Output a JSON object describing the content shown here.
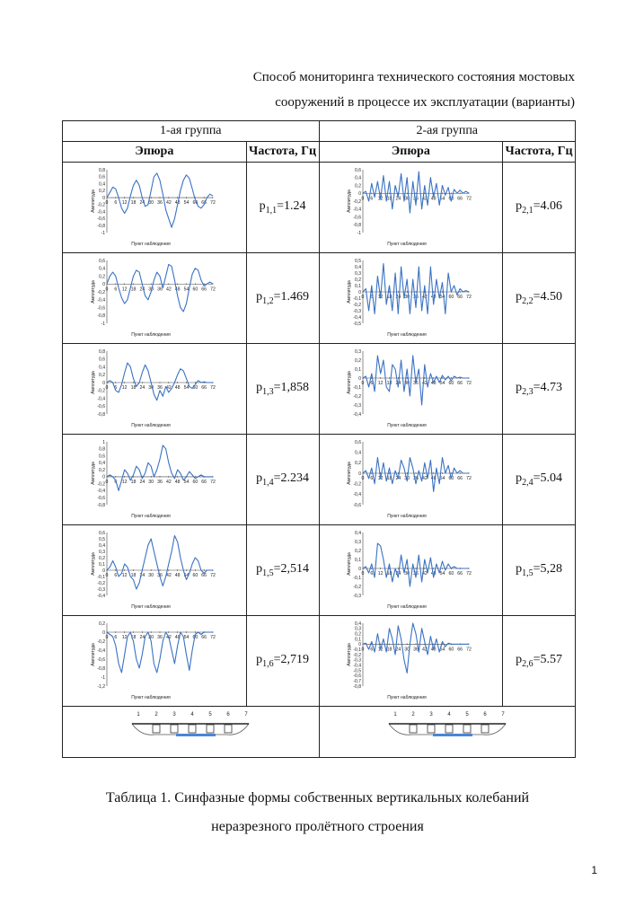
{
  "title": {
    "line1": "Способ мониторинга технического состояния мостовых",
    "line2": "сооружений в процессе их эксплуатации (варианты)"
  },
  "table": {
    "group1": "1-ая группа",
    "group2": "2-ая группа",
    "col_diagram": "Эпюра",
    "col_freq": "Частота, Гц",
    "chart_ylabel": "Амплитуда",
    "chart_xlabel": "Пункт наблюдения",
    "x_ticks": [
      "0",
      "6",
      "12",
      "18",
      "24",
      "30",
      "36",
      "42",
      "48",
      "54",
      "60",
      "66",
      "72"
    ],
    "rows": [
      {
        "left": {
          "sym": "p",
          "sub": "1,1",
          "val": "=1.24",
          "yticks": [
            "0,8",
            "0,6",
            "0,4",
            "0,2",
            "0",
            "-0,2",
            "-0,4",
            "-0,6",
            "-0,8",
            "-1"
          ],
          "ymax": 0.8,
          "ymin": -1.0,
          "curve": [
            0,
            0.15,
            0.3,
            0.25,
            0.0,
            -0.3,
            -0.45,
            -0.3,
            0.05,
            0.35,
            0.5,
            0.35,
            0.0,
            -0.25,
            -0.2,
            0.2,
            0.6,
            0.7,
            0.5,
            0.1,
            -0.35,
            -0.6,
            -0.85,
            -0.6,
            -0.2,
            0.2,
            0.5,
            0.65,
            0.55,
            0.25,
            -0.05,
            -0.25,
            -0.3,
            -0.2,
            0.0,
            0.1,
            0.05
          ]
        },
        "right": {
          "sym": "p",
          "sub": "2,1",
          "val": "=4.06",
          "yticks": [
            "0,6",
            "0,4",
            "0,2",
            "0",
            "-0,2",
            "-0,4",
            "-0,6",
            "-0,8",
            "-1"
          ],
          "ymax": 0.6,
          "ymin": -1.0,
          "curve": [
            0,
            0.05,
            -0.2,
            0.25,
            -0.1,
            0.3,
            -0.15,
            0.45,
            -0.2,
            0.3,
            -0.4,
            0.2,
            -0.1,
            0.5,
            -0.2,
            0.4,
            -0.5,
            0.3,
            -0.3,
            0.55,
            -0.4,
            0.2,
            -0.3,
            0.4,
            -0.1,
            0.25,
            -0.3,
            0.2,
            -0.05,
            0.15,
            -0.2,
            0.1,
            0.0,
            0.08,
            0.0,
            0.05,
            0.0
          ]
        }
      },
      {
        "left": {
          "sym": "p",
          "sub": "1,2",
          "val": "=1.469",
          "yticks": [
            "0,6",
            "0,4",
            "0,2",
            "0",
            "-0,2",
            "-0,4",
            "-0,6",
            "-0,8",
            "-1"
          ],
          "ymax": 0.6,
          "ymin": -1.0,
          "curve": [
            0,
            0.2,
            0.3,
            0.2,
            -0.1,
            -0.35,
            -0.5,
            -0.4,
            -0.1,
            0.2,
            0.35,
            0.3,
            0.0,
            -0.3,
            -0.4,
            -0.2,
            0.1,
            0.3,
            0.2,
            -0.1,
            0.2,
            0.5,
            0.45,
            0.1,
            -0.3,
            -0.6,
            -0.7,
            -0.5,
            -0.1,
            0.25,
            0.4,
            0.35,
            0.1,
            -0.05,
            0.0,
            0.05,
            0.0
          ]
        },
        "right": {
          "sym": "p",
          "sub": "2,2",
          "val": "=4.50",
          "yticks": [
            "0,5",
            "0,4",
            "0,3",
            "0,2",
            "0,1",
            "0",
            "-0,1",
            "-0,2",
            "-0,3",
            "-0,4",
            "-0,5"
          ],
          "ymax": 0.5,
          "ymin": -0.5,
          "curve": [
            0,
            0.05,
            -0.3,
            0.1,
            -0.35,
            0.25,
            -0.1,
            0.45,
            -0.2,
            0.1,
            -0.3,
            0.3,
            -0.35,
            0.4,
            -0.1,
            0.2,
            -0.35,
            0.2,
            -0.25,
            0.4,
            -0.3,
            0.1,
            -0.35,
            0.4,
            -0.2,
            0.2,
            -0.1,
            0.15,
            -0.35,
            0.3,
            0.0,
            0.1,
            -0.05,
            0.05,
            0.0,
            0.02,
            0.0
          ]
        }
      },
      {
        "left": {
          "sym": "p",
          "sub": "1,3",
          "val": "=1,858",
          "yticks": [
            "0,8",
            "0,6",
            "0,4",
            "0,2",
            "0",
            "-0,2",
            "-0,4",
            "-0,6",
            "-0,8"
          ],
          "ymax": 0.8,
          "ymin": -0.8,
          "curve": [
            0,
            0.05,
            0.0,
            -0.2,
            -0.25,
            -0.05,
            0.25,
            0.5,
            0.4,
            0.1,
            -0.1,
            0.0,
            0.25,
            0.45,
            0.3,
            0.0,
            -0.3,
            -0.45,
            -0.2,
            -0.35,
            -0.1,
            -0.25,
            -0.15,
            0.0,
            0.2,
            0.35,
            0.3,
            0.1,
            -0.1,
            -0.15,
            -0.05,
            0.05,
            0.0,
            0.02,
            0.0,
            0.0,
            0.0
          ]
        },
        "right": {
          "sym": "p",
          "sub": "2,3",
          "val": "=4.73",
          "yticks": [
            "0,3",
            "0,2",
            "0,1",
            "0",
            "-0,1",
            "-0,2",
            "-0,3",
            "-0,4"
          ],
          "ymax": 0.3,
          "ymin": -0.4,
          "curve": [
            0,
            0.02,
            -0.1,
            0.05,
            -0.15,
            0.25,
            0.05,
            0.2,
            -0.1,
            -0.15,
            0.15,
            0.1,
            -0.1,
            0.2,
            -0.15,
            0.1,
            -0.2,
            0.25,
            -0.05,
            0.1,
            -0.3,
            0.15,
            -0.1,
            0.05,
            -0.05,
            0.02,
            -0.05,
            0.03,
            -0.02,
            0.02,
            -0.03,
            0.02,
            0.0,
            0.01,
            0.0,
            0.0,
            0.0
          ]
        }
      },
      {
        "left": {
          "sym": "p",
          "sub": "1,4",
          "val": "=2.234",
          "yticks": [
            "1",
            "0,8",
            "0,6",
            "0,4",
            "0,2",
            "0",
            "-0,2",
            "-0,4",
            "-0,6",
            "-0,8"
          ],
          "ymax": 1.0,
          "ymin": -0.8,
          "curve": [
            0,
            0.05,
            0.0,
            -0.1,
            -0.4,
            -0.1,
            0.2,
            0.1,
            -0.1,
            0.05,
            0.3,
            0.2,
            -0.05,
            0.1,
            0.4,
            0.3,
            0.0,
            0.2,
            0.5,
            0.9,
            0.8,
            0.4,
            0.1,
            -0.05,
            0.2,
            0.1,
            -0.1,
            0.0,
            0.15,
            0.05,
            -0.05,
            0.0,
            0.05,
            0.0,
            0.0,
            0.0,
            0.0
          ]
        },
        "right": {
          "sym": "p",
          "sub": "2,4",
          "val": "=5.04",
          "yticks": [
            "0,6",
            "0,4",
            "0,2",
            "0",
            "-0,2",
            "-0,4",
            "-0,6"
          ],
          "ymax": 0.6,
          "ymin": -0.6,
          "curve": [
            0,
            0.05,
            -0.1,
            0.1,
            -0.2,
            0.3,
            -0.1,
            0.2,
            -0.15,
            0.1,
            -0.2,
            0.05,
            -0.1,
            0.25,
            0.1,
            -0.15,
            0.3,
            0.1,
            -0.2,
            0.05,
            -0.15,
            0.2,
            -0.1,
            0.25,
            -0.35,
            0.1,
            -0.2,
            0.3,
            0.0,
            0.15,
            -0.1,
            0.1,
            0.0,
            0.05,
            0.0,
            0.0,
            0.0
          ]
        }
      },
      {
        "left": {
          "sym": "p",
          "sub": "1,5",
          "val": "=2,514",
          "yticks": [
            "0,6",
            "0,5",
            "0,4",
            "0,3",
            "0,2",
            "0,1",
            "0",
            "-0,1",
            "-0,2",
            "-0,3",
            "-0,4"
          ],
          "ymax": 0.6,
          "ymin": -0.4,
          "curve": [
            0,
            0.05,
            0.15,
            0.05,
            -0.1,
            -0.05,
            0.1,
            0.05,
            -0.1,
            -0.15,
            -0.3,
            -0.2,
            0.0,
            0.2,
            0.4,
            0.5,
            0.3,
            0.1,
            -0.1,
            -0.25,
            -0.1,
            0.1,
            0.3,
            0.55,
            0.45,
            0.2,
            0.0,
            -0.15,
            -0.05,
            0.1,
            0.2,
            0.15,
            0.0,
            -0.05,
            0.0,
            0.0,
            0.0
          ]
        },
        "right": {
          "sym": "p",
          "sub": "1,5",
          "val": "=5,28",
          "yticks": [
            "0,4",
            "0,3",
            "0,2",
            "0,1",
            "0",
            "-0,1",
            "-0,2",
            "-0,3"
          ],
          "ymax": 0.4,
          "ymin": -0.3,
          "curve": [
            0,
            0.02,
            -0.05,
            0.05,
            -0.1,
            0.28,
            0.25,
            0.1,
            -0.1,
            0.05,
            -0.15,
            0.0,
            -0.1,
            0.15,
            -0.05,
            0.1,
            -0.2,
            0.05,
            -0.1,
            0.15,
            -0.15,
            0.1,
            -0.05,
            0.12,
            -0.1,
            0.05,
            -0.05,
            0.08,
            -0.02,
            0.05,
            0.0,
            0.02,
            0.0,
            0.0,
            0.0,
            0.0,
            0.0
          ]
        }
      },
      {
        "left": {
          "sym": "p",
          "sub": "1,6",
          "val": "=2,719",
          "yticks": [
            "0,2",
            "0",
            "-0,2",
            "-0,4",
            "-0,6",
            "-0,8",
            "-1",
            "-1,2"
          ],
          "ymax": 0.2,
          "ymin": -1.2,
          "curve": [
            0,
            -0.05,
            -0.1,
            -0.3,
            -0.7,
            -0.9,
            -0.5,
            -0.1,
            0.0,
            -0.2,
            -0.6,
            -0.8,
            -0.5,
            -0.1,
            0.0,
            -0.2,
            -0.7,
            -0.9,
            -0.6,
            -0.2,
            0.0,
            -0.1,
            -0.4,
            -0.7,
            -0.3,
            0.0,
            -0.1,
            -0.5,
            -0.85,
            -0.4,
            -0.05,
            0.0,
            -0.05,
            0.0,
            0.0,
            0.0,
            0.0
          ]
        },
        "right": {
          "sym": "p",
          "sub": "2,6",
          "val": "=5.57",
          "yticks": [
            "0,4",
            "0,3",
            "0,2",
            "0,1",
            "0",
            "-0,1",
            "-0,2",
            "-0,3",
            "-0,4",
            "-0,5",
            "-0,6",
            "-0,7",
            "-0,8"
          ],
          "ymax": 0.4,
          "ymin": -0.8,
          "curve": [
            0,
            0.02,
            -0.1,
            0.05,
            -0.15,
            0.2,
            -0.1,
            0.1,
            -0.15,
            0.3,
            0.1,
            -0.2,
            0.35,
            0.1,
            -0.3,
            -0.55,
            0.0,
            0.4,
            0.2,
            -0.15,
            0.3,
            0.05,
            -0.2,
            0.15,
            -0.1,
            0.1,
            -0.15,
            0.05,
            -0.05,
            0.02,
            0.0,
            0.0,
            0.0,
            0.0,
            0.0,
            0.0,
            0.0
          ]
        }
      }
    ],
    "diagram_left_numbers": [
      "1",
      "2",
      "3",
      "4",
      "5",
      "6",
      "7"
    ],
    "diagram_right_numbers": [
      "1",
      "2",
      "3",
      "4",
      "5",
      "6",
      "7"
    ]
  },
  "caption": {
    "line1": "Таблица 1. Синфазные формы собственных вертикальных колебаний",
    "line2": "неразрезного пролётного строения"
  },
  "page_number": "1",
  "colors": {
    "curve": "#3a72c4",
    "water": "#4a86d8"
  }
}
